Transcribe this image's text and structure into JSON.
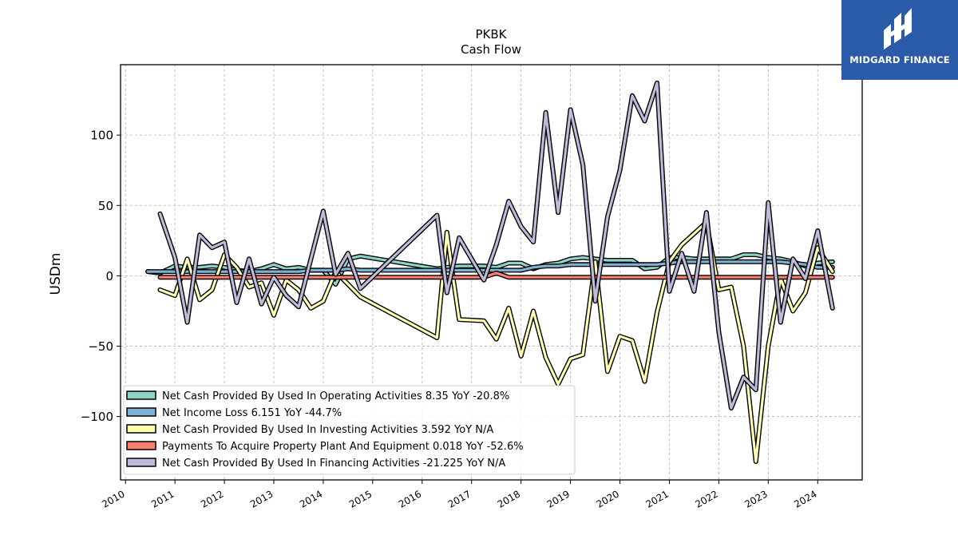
{
  "brand": {
    "name": "MIDGARD FINANCE",
    "color": "#2b5aa8"
  },
  "chart_data": {
    "type": "line",
    "title": "PKBK",
    "subtitle": "Cash Flow",
    "xlabel": "",
    "ylabel": "USDm",
    "xlim": [
      2009.9,
      2024.9
    ],
    "ylim": [
      -145,
      150
    ],
    "x_ticks": [
      2010,
      2011,
      2012,
      2013,
      2014,
      2015,
      2016,
      2017,
      2018,
      2019,
      2020,
      2021,
      2022,
      2023,
      2024
    ],
    "y_ticks": [
      100,
      50,
      0,
      -50,
      -100
    ],
    "y_tick_labels": [
      "100",
      "50",
      "0",
      "−50",
      "−100"
    ],
    "grid": true,
    "legend_position": "lower-left",
    "series": [
      {
        "name": "Net Cash Provided By Used In Operating Activities",
        "legend": "Net Cash Provided By Used In Operating Activities  8.35 YoY -20.8%",
        "color": "#8dd3c7",
        "x": [
          2010.45,
          2010.7,
          2011.0,
          2011.25,
          2011.5,
          2011.75,
          2012.0,
          2012.25,
          2012.5,
          2012.75,
          2013.0,
          2013.25,
          2013.5,
          2013.75,
          2014.0,
          2014.25,
          2014.5,
          2014.75,
          2016.3,
          2016.5,
          2016.75,
          2017.25,
          2017.5,
          2017.75,
          2018.0,
          2018.25,
          2018.5,
          2018.75,
          2019.0,
          2019.25,
          2019.5,
          2019.75,
          2020.0,
          2020.25,
          2020.5,
          2020.75,
          2021.0,
          2021.25,
          2021.5,
          2021.75,
          2022.0,
          2022.25,
          2022.5,
          2022.75,
          2023.0,
          2023.25,
          2023.5,
          2023.75,
          2024.0,
          2024.3
        ],
        "values": [
          3,
          2,
          7,
          6,
          6,
          7,
          6,
          4,
          3,
          5,
          8,
          5,
          6,
          4,
          4,
          -6,
          12,
          14,
          5,
          6,
          7,
          7,
          6,
          9,
          9,
          5,
          8,
          9,
          12,
          13,
          12,
          11,
          11,
          11,
          5,
          6,
          13,
          13,
          12,
          12,
          12,
          12,
          15,
          15,
          13,
          12,
          10,
          7,
          9,
          10
        ]
      },
      {
        "name": "Net Income Loss",
        "legend": "Net Income Loss  6.151 YoY -44.7%",
        "color": "#80b1d3",
        "x": [
          2010.45,
          2010.7,
          2011.0,
          2011.25,
          2011.5,
          2011.75,
          2012.0,
          2012.25,
          2012.5,
          2012.75,
          2013.0,
          2013.25,
          2013.5,
          2013.75,
          2014.0,
          2014.25,
          2014.5,
          2014.75,
          2016.3,
          2016.5,
          2016.75,
          2017.25,
          2017.5,
          2017.75,
          2018.0,
          2018.25,
          2018.5,
          2018.75,
          2019.0,
          2019.25,
          2019.5,
          2019.75,
          2020.0,
          2020.25,
          2020.5,
          2020.75,
          2021.0,
          2021.25,
          2021.5,
          2021.75,
          2022.0,
          2022.25,
          2022.5,
          2022.75,
          2023.0,
          2023.25,
          2023.5,
          2023.75,
          2024.0,
          2024.3
        ],
        "values": [
          3,
          3,
          3,
          3,
          3,
          3,
          3,
          3,
          3,
          3,
          3,
          3,
          3,
          4,
          4,
          4,
          5,
          4,
          4,
          4,
          4,
          4,
          4,
          4,
          4,
          6,
          7,
          7,
          8,
          8,
          8,
          8,
          8,
          8,
          8,
          8,
          9,
          10,
          10,
          10,
          10,
          10,
          10,
          10,
          10,
          10,
          9,
          8,
          6,
          6
        ]
      },
      {
        "name": "Net Cash Provided By Used In Investing Activities",
        "legend": "Net Cash Provided By Used In Investing Activities  3.592 YoY N/A",
        "color": "#ffffb3",
        "x": [
          2010.7,
          2011.0,
          2011.25,
          2011.5,
          2011.75,
          2012.0,
          2012.25,
          2012.5,
          2012.75,
          2013.0,
          2013.25,
          2013.5,
          2013.75,
          2014.0,
          2014.25,
          2014.75,
          2016.3,
          2016.5,
          2016.62,
          2016.75,
          2017.25,
          2017.5,
          2017.75,
          2018.0,
          2018.25,
          2018.5,
          2018.75,
          2019.0,
          2019.25,
          2019.5,
          2019.75,
          2020.0,
          2020.25,
          2020.5,
          2020.75,
          2021.0,
          2021.25,
          2021.5,
          2021.75,
          2022.0,
          2022.25,
          2022.5,
          2022.75,
          2023.0,
          2023.25,
          2023.5,
          2023.75,
          2024.0,
          2024.3
        ],
        "values": [
          -10,
          -14,
          12,
          -17,
          -10,
          15,
          6,
          -8,
          -5,
          -28,
          -3,
          -10,
          -23,
          -18,
          3,
          -15,
          -44,
          31,
          0,
          -31,
          -32,
          -45,
          -23,
          -57,
          -25,
          -58,
          -77,
          -59,
          -56,
          10,
          -68,
          -43,
          -46,
          -75,
          -26,
          10,
          22,
          30,
          38,
          -10,
          -8,
          -50,
          -132,
          -50,
          -2,
          -25,
          -12,
          20,
          3
        ]
      },
      {
        "name": "Payments To Acquire Property Plant And Equipment",
        "legend": "Payments To Acquire Property Plant And Equipment  0.018 YoY -52.6%",
        "color": "#fb8072",
        "x": [
          2010.7,
          2011.5,
          2012.5,
          2013.5,
          2014.5,
          2015.5,
          2016.5,
          2017.25,
          2017.5,
          2017.75,
          2018.5,
          2019.5,
          2020.5,
          2021.5,
          2022.5,
          2023.5,
          2024.3
        ],
        "values": [
          -1,
          -1,
          -1,
          -1,
          -1,
          -1,
          -1,
          -1,
          2,
          -1,
          -1,
          -1,
          -1,
          -1,
          -1,
          -1,
          -1
        ]
      },
      {
        "name": "Net Cash Provided By Used In Financing Activities",
        "legend": "Net Cash Provided By Used In Financing Activities  -21.225 YoY N/A",
        "color": "#bebada",
        "x": [
          2010.7,
          2011.0,
          2011.25,
          2011.5,
          2011.75,
          2012.0,
          2012.25,
          2012.5,
          2012.75,
          2013.0,
          2013.25,
          2013.5,
          2014.0,
          2014.25,
          2014.5,
          2014.75,
          2016.3,
          2016.5,
          2016.75,
          2017.25,
          2017.5,
          2017.75,
          2018.0,
          2018.25,
          2018.5,
          2018.75,
          2019.0,
          2019.25,
          2019.5,
          2019.75,
          2020.0,
          2020.25,
          2020.5,
          2020.75,
          2021.0,
          2021.25,
          2021.5,
          2021.75,
          2022.0,
          2022.25,
          2022.5,
          2022.75,
          2023.0,
          2023.25,
          2023.5,
          2023.75,
          2024.0,
          2024.3
        ],
        "values": [
          44,
          13,
          -33,
          29,
          20,
          24,
          -19,
          12,
          -20,
          -1,
          -14,
          -22,
          46,
          1,
          16,
          -9,
          43,
          -12,
          27,
          -3,
          22,
          53,
          35,
          24,
          116,
          45,
          118,
          79,
          -18,
          42,
          75,
          128,
          110,
          137,
          -11,
          16,
          -11,
          45,
          -40,
          -94,
          -72,
          -81,
          52,
          -33,
          12,
          -2,
          32,
          -23
        ]
      }
    ]
  }
}
